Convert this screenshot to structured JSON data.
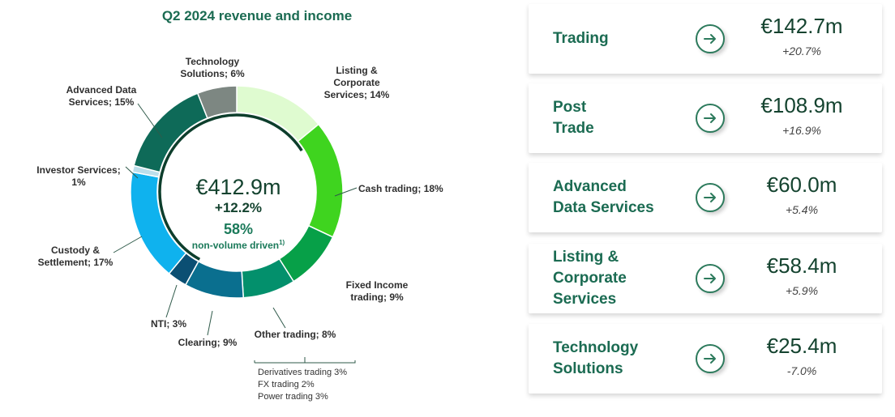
{
  "chart_data": {
    "type": "pie",
    "title": "Q2 2024 revenue and income",
    "unit": "%",
    "slices": [
      {
        "label": "Listing & Corporate Services; 14%",
        "value": 14,
        "color": "#dffbd0"
      },
      {
        "label": "Cash trading; 18%",
        "value": 18,
        "color": "#3fd41f"
      },
      {
        "label": "Fixed Income trading; 9%",
        "value": 9,
        "color": "#07a048"
      },
      {
        "label": "Other trading; 8%",
        "value": 8,
        "color": "#03906c"
      },
      {
        "label": "Clearing; 9%",
        "value": 9,
        "color": "#0a6f8f"
      },
      {
        "label": "NTI; 3%",
        "value": 3,
        "color": "#0b4f73"
      },
      {
        "label": "Custody & Settlement; 17%",
        "value": 17,
        "color": "#0fb2ee"
      },
      {
        "label": "Investor Services; 1%",
        "value": 1,
        "color": "#bcdfeb"
      },
      {
        "label": "Advanced Data Services; 15%",
        "value": 15,
        "color": "#0e6a58"
      },
      {
        "label": "Technology Solutions; 6%",
        "value": 6,
        "color": "#7d8782"
      }
    ],
    "center": {
      "total": "€412.9m",
      "growth": "+12.2%",
      "share": "58%",
      "share_label": "non-volume driven",
      "footnote": "1)"
    },
    "breakdown": [
      "Derivatives trading 3%",
      "FX trading 2%",
      "Power trading 3%"
    ]
  },
  "segments": [
    {
      "title": "Trading",
      "value": "€142.7m",
      "change": "+20.7%"
    },
    {
      "title": "Post Trade",
      "value": "€108.9m",
      "change": "+16.9%"
    },
    {
      "title": "Advanced Data Services",
      "value": "€60.0m",
      "change": "+5.4%"
    },
    {
      "title": "Listing & Corporate Services",
      "value": "€58.4m",
      "change": "+5.9%"
    },
    {
      "title": "Technology Solutions",
      "value": "€25.4m",
      "change": "-7.0%"
    }
  ],
  "icons": {
    "segment_arrow": "arrow-right-circle-icon"
  }
}
